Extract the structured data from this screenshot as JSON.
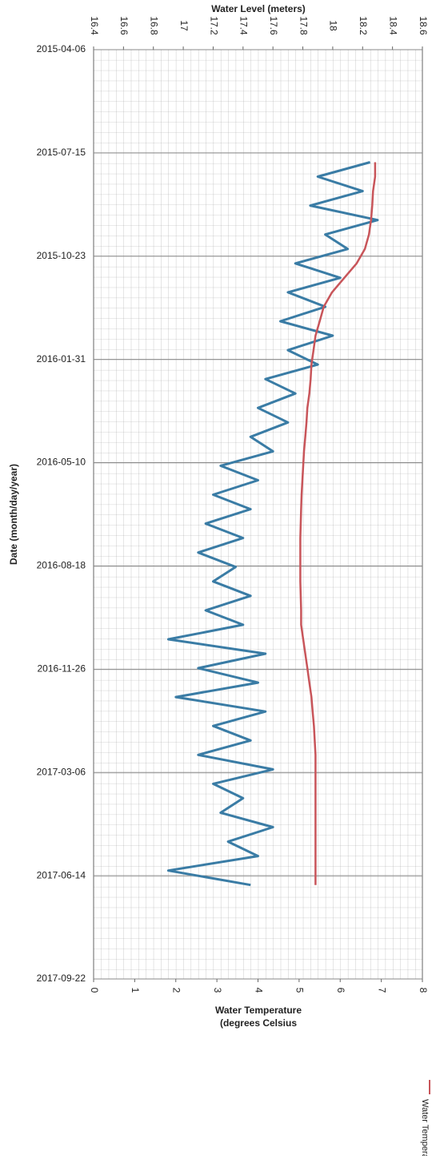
{
  "chart_data": {
    "type": "line",
    "top_axis_label": "Water Level (meters)",
    "y_label": "Date (month/day/year)",
    "bottom_axis_label": [
      "Water Temperature",
      "(degrees Celsius"
    ],
    "x": [
      "2015-07-24",
      "2015-08-07",
      "2015-08-21",
      "2015-09-04",
      "2015-09-18",
      "2015-10-02",
      "2015-10-16",
      "2015-10-30",
      "2015-11-13",
      "2015-11-27",
      "2015-12-11",
      "2015-12-25",
      "2016-01-08",
      "2016-01-22",
      "2016-02-05",
      "2016-02-19",
      "2016-03-04",
      "2016-03-18",
      "2016-04-01",
      "2016-04-15",
      "2016-04-29",
      "2016-05-13",
      "2016-05-27",
      "2016-06-10",
      "2016-06-24",
      "2016-07-08",
      "2016-07-22",
      "2016-08-05",
      "2016-08-19",
      "2016-09-02",
      "2016-09-16",
      "2016-09-30",
      "2016-10-14",
      "2016-10-28",
      "2016-11-11",
      "2016-11-25",
      "2016-12-09",
      "2016-12-23",
      "2017-01-06",
      "2017-01-20",
      "2017-02-03",
      "2017-02-17",
      "2017-03-03",
      "2017-03-17",
      "2017-03-31",
      "2017-04-14",
      "2017-04-28",
      "2017-05-12",
      "2017-05-26",
      "2017-06-09",
      "2017-06-23"
    ],
    "series": [
      {
        "color": "#3a7ca5",
        "axis": "top",
        "values": [
          18.25,
          17.9,
          18.2,
          17.85,
          18.3,
          17.95,
          18.1,
          17.75,
          18.05,
          17.7,
          17.95,
          17.65,
          18.0,
          17.7,
          17.9,
          17.55,
          17.75,
          17.5,
          17.7,
          17.45,
          17.6,
          17.25,
          17.5,
          17.2,
          17.45,
          17.15,
          17.4,
          17.1,
          17.35,
          17.2,
          17.45,
          17.15,
          17.4,
          16.9,
          17.55,
          17.1,
          17.5,
          16.95,
          17.55,
          17.2,
          17.45,
          17.1,
          17.6,
          17.2,
          17.4,
          17.25,
          17.6,
          17.3,
          17.5,
          16.9,
          17.45
        ]
      },
      {
        "name": "Water Temperature",
        "color": "#c8555a",
        "axis": "bottom",
        "values": [
          6.85,
          6.85,
          6.8,
          6.78,
          6.75,
          6.7,
          6.6,
          6.4,
          6.1,
          5.8,
          5.6,
          5.5,
          5.4,
          5.35,
          5.3,
          5.28,
          5.25,
          5.2,
          5.18,
          5.15,
          5.12,
          5.1,
          5.08,
          5.06,
          5.05,
          5.04,
          5.03,
          5.03,
          5.03,
          5.03,
          5.04,
          5.05,
          5.05,
          5.1,
          5.15,
          5.2,
          5.25,
          5.3,
          5.33,
          5.36,
          5.38,
          5.4,
          5.4,
          5.4,
          5.4,
          5.4,
          5.4,
          5.4,
          5.4,
          5.4,
          5.4
        ]
      }
    ],
    "ylim": [
      "2015-04-06",
      "2017-09-22"
    ],
    "yticks": [
      "2015-04-06",
      "2015-07-15",
      "2015-10-23",
      "2016-01-31",
      "2016-05-10",
      "2016-08-18",
      "2016-11-26",
      "2017-03-06",
      "2017-06-14",
      "2017-09-22"
    ],
    "toplim": [
      16.4,
      18.6
    ],
    "topticks": [
      16.4,
      16.6,
      16.8,
      17,
      17.2,
      17.4,
      17.6,
      17.8,
      18,
      18.2,
      18.4,
      18.6
    ],
    "bottomlim": [
      0,
      8
    ],
    "bottomticks": [
      0,
      1,
      2,
      3,
      4,
      5,
      6,
      7,
      8
    ],
    "grid": true
  }
}
